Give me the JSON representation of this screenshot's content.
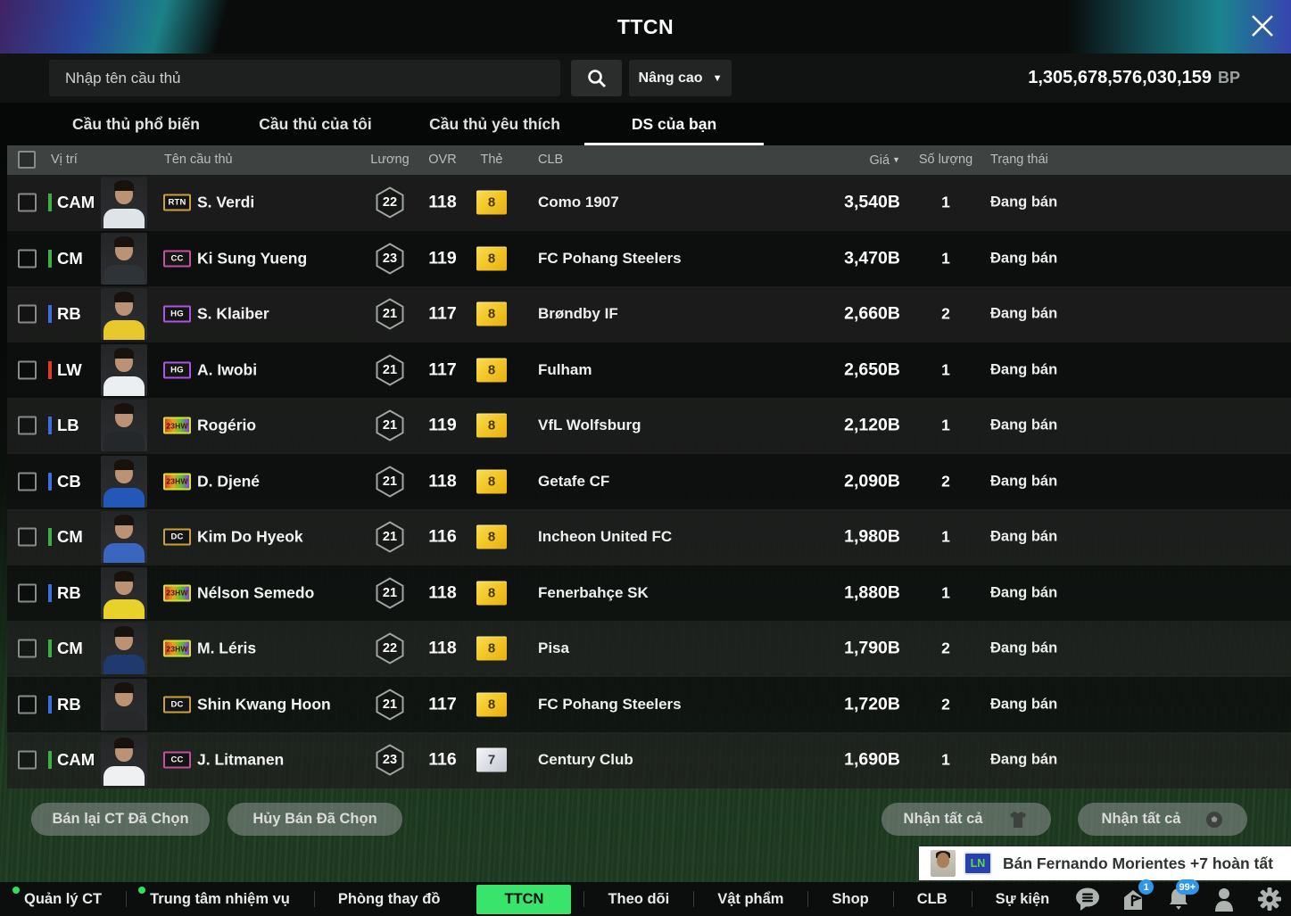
{
  "header": {
    "title": "TTCN"
  },
  "search": {
    "placeholder": "Nhập tên cầu thủ",
    "advanced_label": "Nâng cao",
    "balance": "1,305,678,576,030,159",
    "currency": "BP"
  },
  "tabs": [
    {
      "label": "Cầu thủ phổ biến",
      "active": false
    },
    {
      "label": "Cầu thủ của tôi",
      "active": false
    },
    {
      "label": "Cầu thủ yêu thích",
      "active": false
    },
    {
      "label": "DS của bạn",
      "active": true
    }
  ],
  "table": {
    "headers": {
      "position": "Vị trí",
      "name": "Tên cầu thủ",
      "salary": "Lương",
      "ovr": "OVR",
      "card": "Thẻ",
      "club": "CLB",
      "price": "Giá",
      "sort_caret": "▼",
      "qty": "Số lượng",
      "status": "Trạng thái"
    },
    "rows": [
      {
        "position": "CAM",
        "pos_color": "green",
        "season": "RTN",
        "name": "S. Verdi",
        "salary": "22",
        "ovr": "118",
        "card": "8",
        "card_type": "gold",
        "club": "Como 1907",
        "price": "3,540B",
        "qty": "1",
        "status": "Đang bán",
        "jersey": "#dfe4e8"
      },
      {
        "position": "CM",
        "pos_color": "green",
        "season": "CC",
        "name": "Ki Sung Yueng",
        "salary": "23",
        "ovr": "119",
        "card": "8",
        "card_type": "gold",
        "club": "FC Pohang Steelers",
        "price": "3,470B",
        "qty": "1",
        "status": "Đang bán",
        "jersey": "#2e3338"
      },
      {
        "position": "RB",
        "pos_color": "blue",
        "season": "HG",
        "name": "S. Klaiber",
        "salary": "21",
        "ovr": "117",
        "card": "8",
        "card_type": "gold",
        "club": "Brøndby IF",
        "price": "2,660B",
        "qty": "2",
        "status": "Đang bán",
        "jersey": "#e8c82a"
      },
      {
        "position": "LW",
        "pos_color": "red",
        "season": "HG",
        "name": "A. Iwobi",
        "salary": "21",
        "ovr": "117",
        "card": "8",
        "card_type": "gold",
        "club": "Fulham",
        "price": "2,650B",
        "qty": "1",
        "status": "Đang bán",
        "jersey": "#eceff1"
      },
      {
        "position": "LB",
        "pos_color": "blue",
        "season": "23HW",
        "name": "Rogério",
        "salary": "21",
        "ovr": "119",
        "card": "8",
        "card_type": "gold",
        "club": "VfL Wolfsburg",
        "price": "2,120B",
        "qty": "1",
        "status": "Đang bán",
        "jersey": "#25282a"
      },
      {
        "position": "CB",
        "pos_color": "blue",
        "season": "23HW",
        "name": "D. Djené",
        "salary": "21",
        "ovr": "118",
        "card": "8",
        "card_type": "gold",
        "club": "Getafe CF",
        "price": "2,090B",
        "qty": "2",
        "status": "Đang bán",
        "jersey": "#2458b8"
      },
      {
        "position": "CM",
        "pos_color": "green",
        "season": "DC",
        "name": "Kim Do Hyeok",
        "salary": "21",
        "ovr": "116",
        "card": "8",
        "card_type": "gold",
        "club": "Incheon United FC",
        "price": "1,980B",
        "qty": "1",
        "status": "Đang bán",
        "jersey": "#3a66c0"
      },
      {
        "position": "RB",
        "pos_color": "blue",
        "season": "23HW",
        "name": "Nélson Semedo",
        "salary": "21",
        "ovr": "118",
        "card": "8",
        "card_type": "gold",
        "club": "Fenerbahçe SK",
        "price": "1,880B",
        "qty": "1",
        "status": "Đang bán",
        "jersey": "#e8d22a"
      },
      {
        "position": "CM",
        "pos_color": "green",
        "season": "23HW",
        "name": "M. Léris",
        "salary": "22",
        "ovr": "118",
        "card": "8",
        "card_type": "gold",
        "club": "Pisa",
        "price": "1,790B",
        "qty": "2",
        "status": "Đang bán",
        "jersey": "#1e3a6e"
      },
      {
        "position": "RB",
        "pos_color": "blue",
        "season": "DC",
        "name": "Shin Kwang Hoon",
        "salary": "21",
        "ovr": "117",
        "card": "8",
        "card_type": "gold",
        "club": "FC Pohang Steelers",
        "price": "1,720B",
        "qty": "2",
        "status": "Đang bán",
        "jersey": "#26282a"
      },
      {
        "position": "CAM",
        "pos_color": "green",
        "season": "CC",
        "name": "J. Litmanen",
        "salary": "23",
        "ovr": "116",
        "card": "7",
        "card_type": "silver",
        "club": "Century Club",
        "price": "1,690B",
        "qty": "1",
        "status": "Đang bán",
        "jersey": "#eef0f2"
      }
    ]
  },
  "actions": {
    "sell_selected": "Bán lại CT Đã Chọn",
    "cancel_selected": "Hủy Bán Đã Chọn",
    "receive_all_players": "Nhận tất cả",
    "receive_all_items": "Nhận tất cả"
  },
  "notification": {
    "badge": "LN",
    "text": "Bán Fernando Morientes +7 hoàn tất"
  },
  "bottom_nav": {
    "items": [
      {
        "label": "Quản lý CT",
        "dot": true,
        "active": false
      },
      {
        "label": "Trung tâm nhiệm vụ",
        "dot": true,
        "active": false
      },
      {
        "label": "Phòng thay đồ",
        "dot": false,
        "active": false
      },
      {
        "label": "TTCN",
        "dot": false,
        "active": true
      },
      {
        "label": "Theo dõi",
        "dot": false,
        "active": false
      },
      {
        "label": "Vật phẩm",
        "dot": false,
        "active": false
      },
      {
        "label": "Shop",
        "dot": false,
        "active": false
      },
      {
        "label": "CLB",
        "dot": false,
        "active": false
      },
      {
        "label": "Sự kiện",
        "dot": false,
        "active": false
      }
    ],
    "badges": {
      "flag": "1",
      "bell": "99+"
    }
  },
  "colors": {
    "accent_green": "#38e469",
    "position_green": "#3fae49",
    "position_blue": "#3f6ce0",
    "position_red": "#e0392e",
    "card_gold": "#f3c829",
    "badge_blue": "#2f96ea"
  }
}
